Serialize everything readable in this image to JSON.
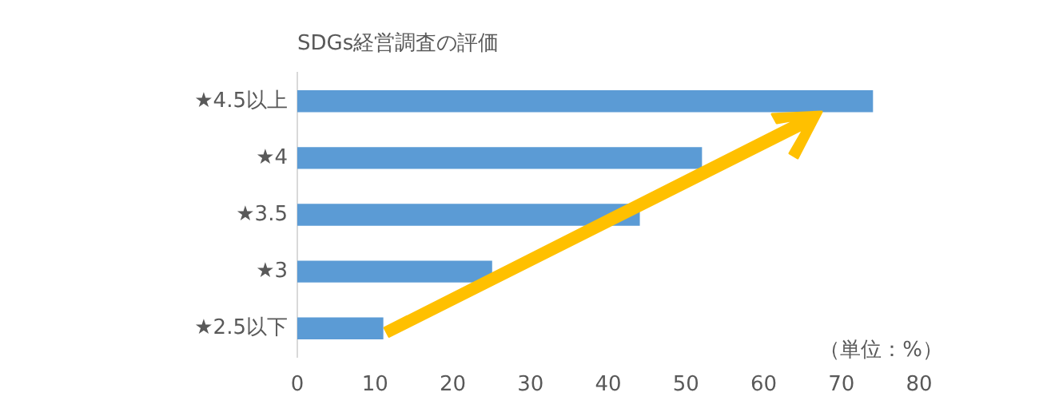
{
  "chart_data": {
    "type": "bar",
    "orientation": "horizontal",
    "title": "SDGs経営調査の評価",
    "categories": [
      "★4.5以上",
      "★4",
      "★3.5",
      "★3",
      "★2.5以下"
    ],
    "values": [
      74,
      52,
      44,
      25,
      11
    ],
    "color": "#5b9bd5",
    "xlim": [
      0,
      80
    ],
    "xticks": [
      0,
      10,
      20,
      30,
      40,
      50,
      60,
      70,
      80
    ],
    "grid": false,
    "annotations": [
      "（単位：%）"
    ]
  }
}
